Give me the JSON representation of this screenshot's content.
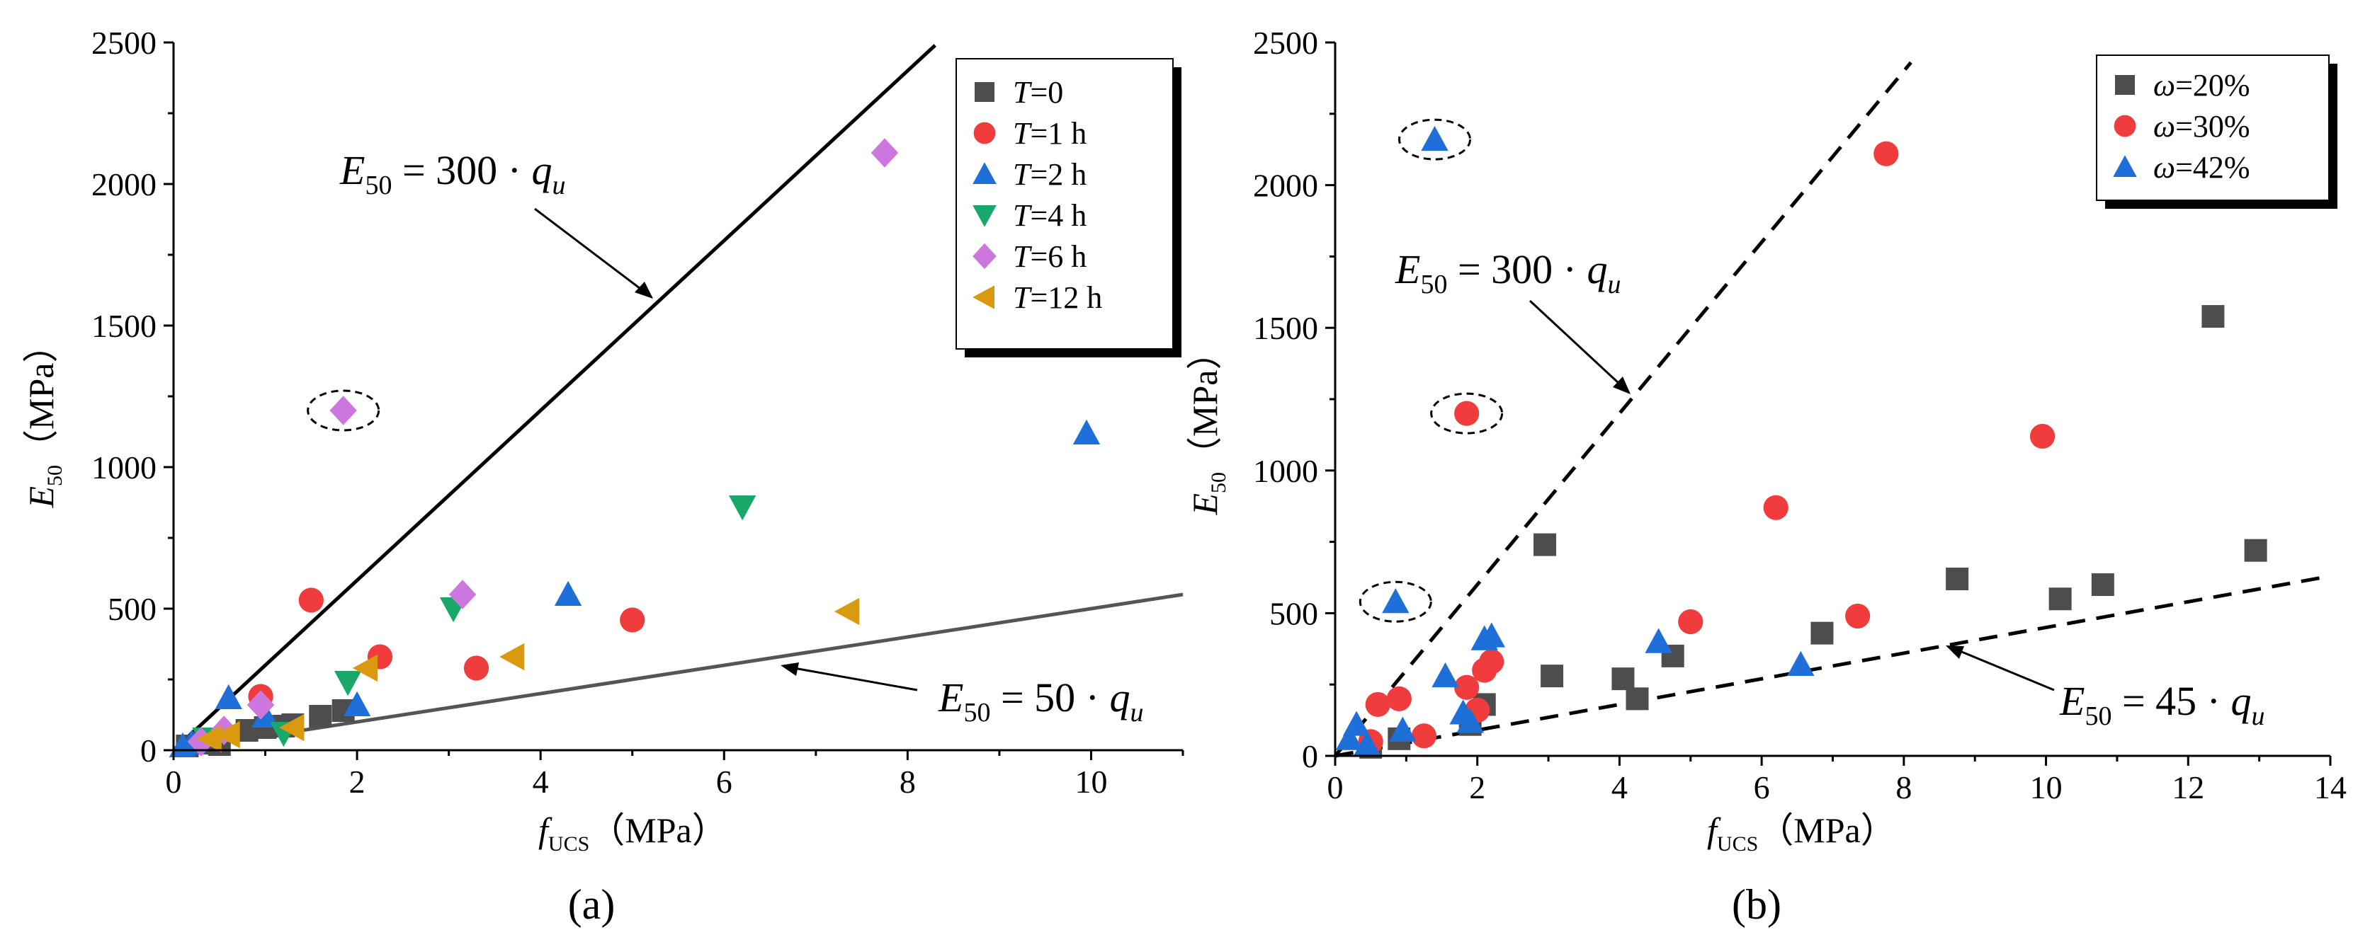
{
  "chart_data": [
    {
      "type": "scatter",
      "panel_label": "(a)",
      "xlabel": "f_UCS（MPa）",
      "xlabel_main": "f",
      "xlabel_sub": "UCS",
      "xlabel_unit": "（MPa）",
      "ylabel": "E50（MPa）",
      "ylabel_main": "E",
      "ylabel_sub": "50",
      "ylabel_unit": "（MPa）",
      "xlim": [
        0,
        11
      ],
      "ylim": [
        0,
        2500
      ],
      "xticks": [
        0,
        2,
        4,
        6,
        8,
        10
      ],
      "yticks": [
        0,
        500,
        1000,
        1500,
        2000,
        2500
      ],
      "legend_position": "top-right",
      "series": [
        {
          "name": "T=0",
          "var": "T",
          "val": "=0",
          "marker": "square",
          "color": "#4d4d4d",
          "points": [
            [
              0.15,
              15
            ],
            [
              0.3,
              25
            ],
            [
              0.5,
              20
            ],
            [
              0.8,
              70
            ],
            [
              1.0,
              80
            ],
            [
              1.2,
              85
            ],
            [
              1.3,
              90
            ],
            [
              1.6,
              120
            ],
            [
              1.85,
              140
            ]
          ]
        },
        {
          "name": "T=1 h",
          "var": "T",
          "val": "=1 h",
          "marker": "circle",
          "color": "#f03c3c",
          "points": [
            [
              0.95,
              190
            ],
            [
              1.5,
              530
            ],
            [
              2.25,
              330
            ],
            [
              3.3,
              290
            ],
            [
              5.0,
              460
            ]
          ]
        },
        {
          "name": "T=2 h",
          "var": "T",
          "val": "=2 h",
          "marker": "triangle-up",
          "color": "#1e6fd8",
          "points": [
            [
              0.1,
              15
            ],
            [
              0.2,
              25
            ],
            [
              0.6,
              185
            ],
            [
              1.0,
              120
            ],
            [
              2.0,
              160
            ],
            [
              4.3,
              550
            ],
            [
              9.95,
              1120
            ]
          ]
        },
        {
          "name": "T=4 h",
          "var": "T",
          "val": "=4 h",
          "marker": "triangle-down",
          "color": "#1aa86a",
          "points": [
            [
              0.35,
              40
            ],
            [
              1.2,
              60
            ],
            [
              1.9,
              240
            ],
            [
              3.05,
              500
            ],
            [
              6.2,
              860
            ]
          ]
        },
        {
          "name": "T=6 h",
          "var": "T",
          "val": "=6 h",
          "marker": "diamond",
          "color": "#cc77dd",
          "points": [
            [
              0.3,
              30
            ],
            [
              0.55,
              70
            ],
            [
              0.95,
              160
            ],
            [
              1.85,
              1200
            ],
            [
              3.15,
              550
            ],
            [
              7.75,
              2110
            ]
          ]
        },
        {
          "name": "T=12 h",
          "var": "T",
          "val": "=12 h",
          "marker": "triangle-left",
          "color": "#d99a10",
          "points": [
            [
              0.4,
              40
            ],
            [
              0.6,
              55
            ],
            [
              1.3,
              80
            ],
            [
              2.1,
              290
            ],
            [
              3.7,
              330
            ],
            [
              7.35,
              490
            ]
          ]
        }
      ],
      "lines": [
        {
          "slope": 300,
          "x_end": 8.3,
          "style": "solid",
          "color": "#000000",
          "label": "E50 = 300 · qu",
          "coef": "300"
        },
        {
          "slope": 50,
          "x_end": 11,
          "style": "solid",
          "color": "#555555",
          "label": "E50 = 50 · qu",
          "coef": "50"
        }
      ],
      "highlighted_points": [
        [
          1.85,
          1200
        ]
      ]
    },
    {
      "type": "scatter",
      "panel_label": "(b)",
      "xlabel": "f_UCS（MPa）",
      "xlabel_main": "f",
      "xlabel_sub": "UCS",
      "xlabel_unit": "（MPa）",
      "ylabel": "E50（MPa）",
      "ylabel_main": "E",
      "ylabel_sub": "50",
      "ylabel_unit": "（MPa）",
      "xlim": [
        0,
        14
      ],
      "ylim": [
        0,
        2500
      ],
      "xticks": [
        0,
        2,
        4,
        6,
        8,
        10,
        12,
        14
      ],
      "yticks": [
        0,
        500,
        1000,
        1500,
        2000,
        2500
      ],
      "legend_position": "top-right",
      "series": [
        {
          "name": "ω=20%",
          "var": "ω",
          "val": "=20%",
          "marker": "square",
          "color": "#4d4d4d",
          "points": [
            [
              0.5,
              30
            ],
            [
              0.9,
              60
            ],
            [
              1.9,
              110
            ],
            [
              2.1,
              180
            ],
            [
              2.95,
              740
            ],
            [
              3.05,
              280
            ],
            [
              4.05,
              270
            ],
            [
              4.25,
              200
            ],
            [
              4.75,
              350
            ],
            [
              6.85,
              430
            ],
            [
              8.75,
              620
            ],
            [
              10.2,
              550
            ],
            [
              10.8,
              600
            ],
            [
              12.35,
              1540
            ],
            [
              12.95,
              720
            ]
          ]
        },
        {
          "name": "ω=30%",
          "var": "ω",
          "val": "=30%",
          "marker": "circle",
          "color": "#f03c3c",
          "points": [
            [
              0.5,
              50
            ],
            [
              0.6,
              180
            ],
            [
              0.9,
              200
            ],
            [
              1.25,
              70
            ],
            [
              1.85,
              1200
            ],
            [
              1.85,
              240
            ],
            [
              2.0,
              160
            ],
            [
              2.1,
              300
            ],
            [
              2.2,
              330
            ],
            [
              5.0,
              470
            ],
            [
              6.2,
              870
            ],
            [
              7.35,
              490
            ],
            [
              7.75,
              2110
            ],
            [
              9.95,
              1120
            ]
          ]
        },
        {
          "name": "ω=42%",
          "var": "ω",
          "val": "=42%",
          "marker": "triangle-up",
          "color": "#1e6fd8",
          "points": [
            [
              0.2,
              60
            ],
            [
              0.3,
              110
            ],
            [
              0.45,
              40
            ],
            [
              0.85,
              540
            ],
            [
              0.95,
              90
            ],
            [
              1.4,
              2160
            ],
            [
              1.55,
              280
            ],
            [
              1.8,
              150
            ],
            [
              1.9,
              120
            ],
            [
              2.1,
              410
            ],
            [
              2.2,
              420
            ],
            [
              4.55,
              400
            ],
            [
              6.55,
              320
            ]
          ]
        }
      ],
      "lines": [
        {
          "slope": 300,
          "x_end": 8.1,
          "style": "dashed",
          "color": "#000000",
          "label": "E50 = 300 · qu",
          "coef": "300"
        },
        {
          "slope": 45,
          "x_end": 14,
          "style": "dashed",
          "color": "#000000",
          "label": "E50 = 45 · qu",
          "coef": "45"
        }
      ],
      "highlighted_points": [
        [
          1.4,
          2160
        ],
        [
          1.85,
          1200
        ],
        [
          0.85,
          540
        ]
      ]
    }
  ]
}
